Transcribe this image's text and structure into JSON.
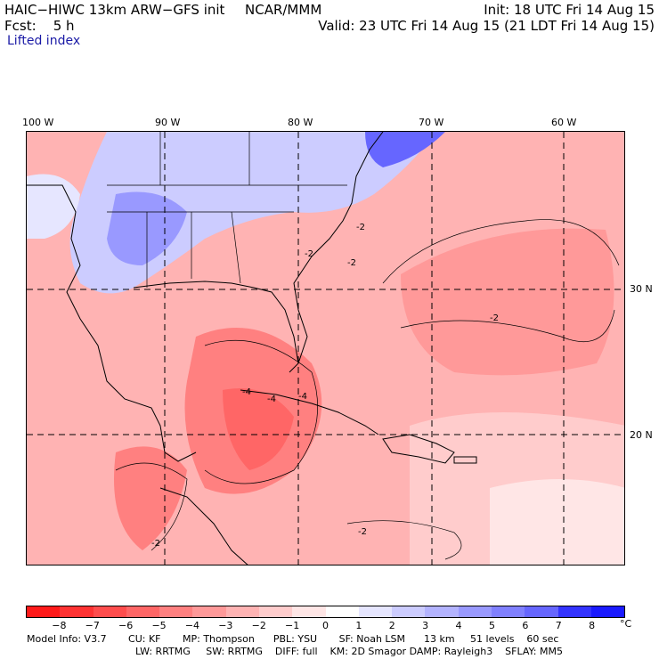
{
  "header": {
    "model": "HAIC−HIWC 13km ARW−GFS init",
    "org": "NCAR/MMM",
    "init": "Init: 18 UTC Fri 14 Aug 15",
    "fcst": "Fcst:    5 h",
    "valid": "Valid: 23 UTC Fri 14 Aug 15 (21 LDT Fri 14 Aug 15)",
    "field": "Lifted index"
  },
  "map": {
    "lon_labels": [
      "100 W",
      "90 W",
      "80 W",
      "70 W",
      "60 W"
    ],
    "lat_labels": [
      "30 N",
      "20 N"
    ],
    "contour_labels": [
      "-2",
      "-2",
      "-2",
      "-2",
      "-4",
      "-4",
      "-4",
      "-2",
      "-2"
    ]
  },
  "colorbar": {
    "unit": "°C",
    "labels": [
      "−8",
      "−7",
      "−6",
      "−5",
      "−4",
      "−3",
      "−2",
      "−1",
      "0",
      "1",
      "2",
      "3",
      "4",
      "5",
      "6",
      "7",
      "8"
    ],
    "colors": [
      "#ff1a1a",
      "#ff3333",
      "#ff4d4d",
      "#ff6666",
      "#ff8080",
      "#ff9999",
      "#ffb3b3",
      "#ffcccc",
      "#ffe6e6",
      "#ffffff",
      "#e6e6ff",
      "#ccccff",
      "#b3b3ff",
      "#9999ff",
      "#8080ff",
      "#6666ff",
      "#3333ff",
      "#1a1aff"
    ]
  },
  "model_info": {
    "line1": "Model Info: V3.7       CU: KF       MP: Thompson      PBL: YSU       SF: Noah LSM      13 km     51 levels    60 sec",
    "line2": "LW: RRTMG     SW: RRTMG    DIFF: full    KM: 2D Smagor DAMP: Rayleigh3    SFLAY: MM5"
  }
}
